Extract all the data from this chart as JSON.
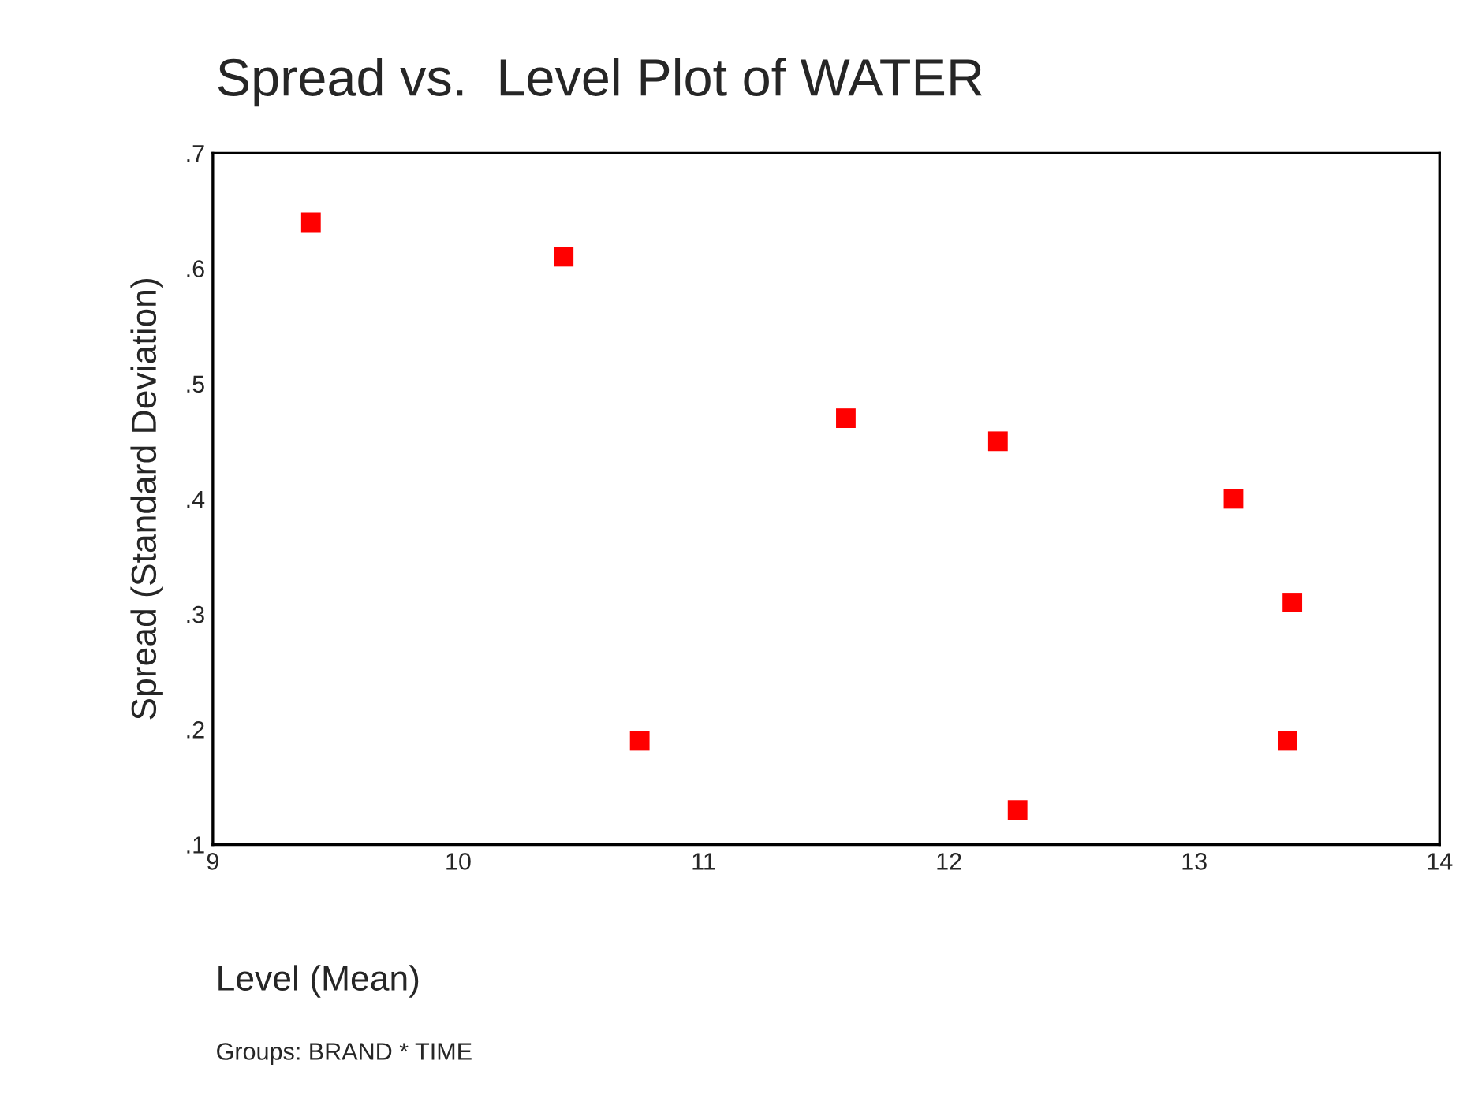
{
  "chart_data": {
    "type": "scatter",
    "title": "Spread vs.  Level Plot of WATER",
    "xlabel": "Level (Mean)",
    "ylabel": "Spread (Standard Deviation)",
    "annotations": [
      "Groups: BRAND * TIME"
    ],
    "x": [
      9.4,
      10.43,
      10.74,
      11.58,
      12.2,
      12.28,
      13.16,
      13.4,
      13.38
    ],
    "series": [
      {
        "color": "#ff0000",
        "values": [
          0.64,
          0.61,
          0.19,
          0.47,
          0.45,
          0.13,
          0.4,
          0.31,
          0.19
        ]
      }
    ],
    "marker": "square",
    "grid": false,
    "legend": false,
    "xlim": [
      9,
      14
    ],
    "xticks": [
      9,
      10,
      11,
      12,
      13,
      14
    ],
    "ylim": [
      0.1,
      0.7
    ],
    "yticks": [
      {
        "value": 0.1,
        "label": ".1"
      },
      {
        "value": 0.2,
        "label": ".2"
      },
      {
        "value": 0.3,
        "label": ".3"
      },
      {
        "value": 0.4,
        "label": ".4"
      },
      {
        "value": 0.5,
        "label": ".5"
      },
      {
        "value": 0.6,
        "label": ".6"
      },
      {
        "value": 0.7,
        "label": ".7"
      }
    ]
  }
}
